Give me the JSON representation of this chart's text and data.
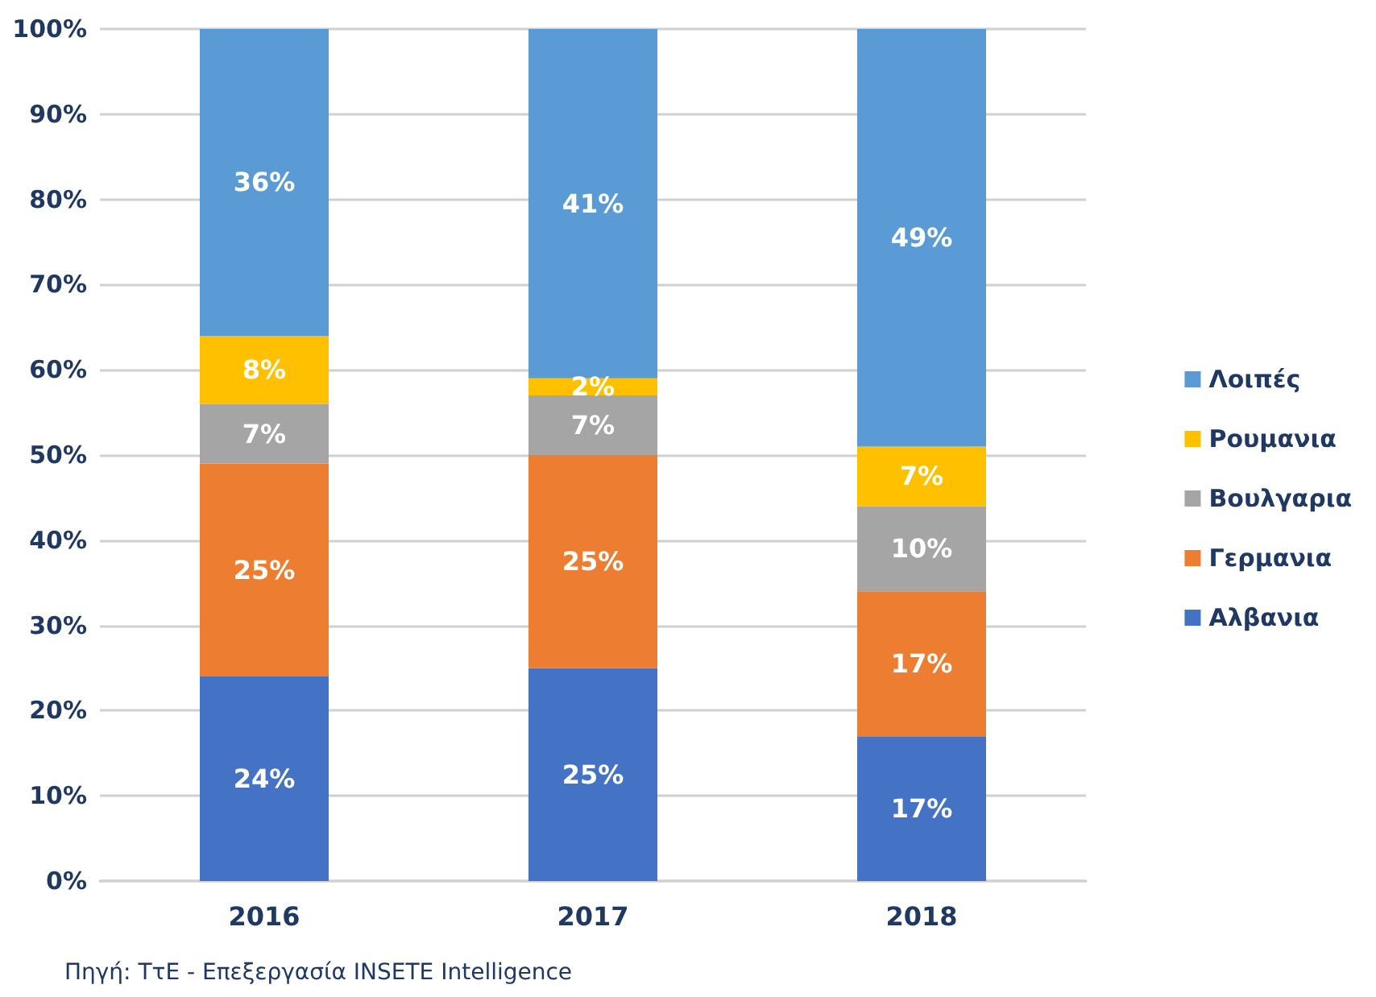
{
  "chart_data": {
    "type": "bar",
    "stacked": true,
    "categories": [
      "2016",
      "2017",
      "2018"
    ],
    "series": [
      {
        "name": "Αλβανια",
        "color": "#4472c4",
        "values": [
          24,
          25,
          17
        ],
        "value_labels": [
          "24%",
          "25%",
          "17%"
        ]
      },
      {
        "name": "Γερμανια",
        "color": "#ed7d31",
        "values": [
          25,
          25,
          17
        ],
        "value_labels": [
          "25%",
          "25%",
          "17%"
        ]
      },
      {
        "name": "Βουλγαρια",
        "color": "#a5a5a5",
        "values": [
          7,
          7,
          10
        ],
        "value_labels": [
          "7%",
          "7%",
          "10%"
        ]
      },
      {
        "name": "Ρουμανια",
        "color": "#ffc000",
        "values": [
          8,
          2,
          7
        ],
        "value_labels": [
          "8%",
          "2%",
          "7%"
        ]
      },
      {
        "name": "Λοιπές",
        "color": "#5b9bd5",
        "values": [
          36,
          41,
          49
        ],
        "value_labels": [
          "36%",
          "41%",
          "49%"
        ]
      }
    ],
    "ylim": [
      0,
      100
    ],
    "yticks": [
      {
        "value": 0,
        "label": "0%"
      },
      {
        "value": 10,
        "label": "10%"
      },
      {
        "value": 20,
        "label": "20%"
      },
      {
        "value": 30,
        "label": "30%"
      },
      {
        "value": 40,
        "label": "40%"
      },
      {
        "value": 50,
        "label": "50%"
      },
      {
        "value": 60,
        "label": "60%"
      },
      {
        "value": 70,
        "label": "70%"
      },
      {
        "value": 80,
        "label": "80%"
      },
      {
        "value": 90,
        "label": "90%"
      },
      {
        "value": 100,
        "label": "100%"
      }
    ],
    "grid": "y",
    "legend": "right",
    "annotations": [
      "Πηγή: ΤτΕ - Επεξεργασία INSETE Intelligence"
    ]
  }
}
